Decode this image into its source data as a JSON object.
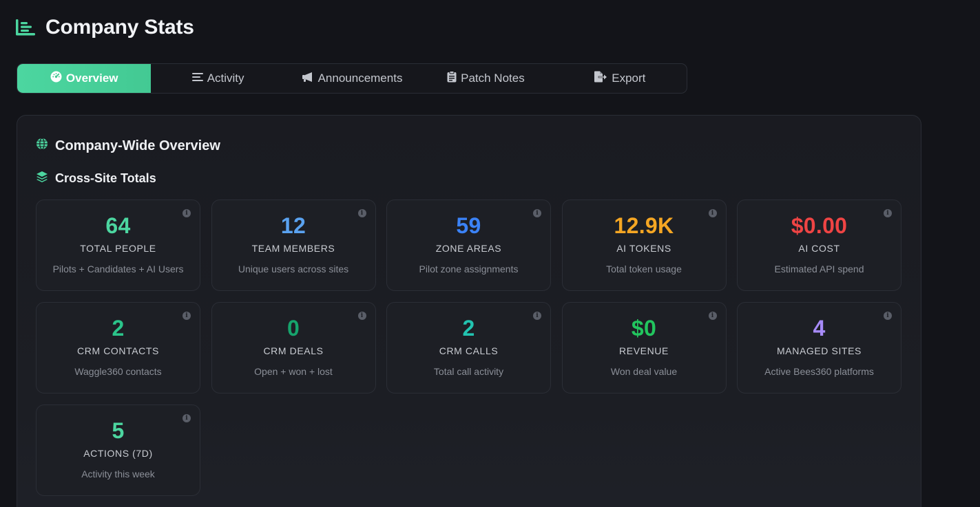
{
  "header": {
    "title": "Company Stats",
    "icon": "chart-bar-icon"
  },
  "tabs": [
    {
      "label": "Overview",
      "icon": "dashboard-icon",
      "active": true
    },
    {
      "label": "Activity",
      "icon": "list-icon",
      "active": false
    },
    {
      "label": "Announcements",
      "icon": "megaphone-icon",
      "active": false
    },
    {
      "label": "Patch Notes",
      "icon": "clipboard-icon",
      "active": false
    },
    {
      "label": "Export",
      "icon": "file-export-icon",
      "active": false
    }
  ],
  "overview": {
    "title": "Company-Wide Overview",
    "subtitle": "Cross-Site Totals"
  },
  "stats": [
    {
      "value": "64",
      "label": "TOTAL PEOPLE",
      "desc": "Pilots + Candidates + AI Users",
      "color": "#4cd6a0"
    },
    {
      "value": "12",
      "label": "TEAM MEMBERS",
      "desc": "Unique users across sites",
      "color": "#5aa2f0"
    },
    {
      "value": "59",
      "label": "ZONE AREAS",
      "desc": "Pilot zone assignments",
      "color": "#3b82f6"
    },
    {
      "value": "12.9K",
      "label": "AI TOKENS",
      "desc": "Total token usage",
      "color": "#f5a623"
    },
    {
      "value": "$0.00",
      "label": "AI COST",
      "desc": "Estimated API spend",
      "color": "#ef4444"
    },
    {
      "value": "2",
      "label": "CRM CONTACTS",
      "desc": "Waggle360 contacts",
      "color": "#2bc48a"
    },
    {
      "value": "0",
      "label": "CRM DEALS",
      "desc": "Open + won + lost",
      "color": "#16a36c"
    },
    {
      "value": "2",
      "label": "CRM CALLS",
      "desc": "Total call activity",
      "color": "#22c3b0"
    },
    {
      "value": "$0",
      "label": "REVENUE",
      "desc": "Won deal value",
      "color": "#22c55e"
    },
    {
      "value": "4",
      "label": "MANAGED SITES",
      "desc": "Active Bees360 platforms",
      "color": "#a78bfa"
    },
    {
      "value": "5",
      "label": "ACTIONS (7D)",
      "desc": "Activity this week",
      "color": "#4cd6a0"
    }
  ]
}
